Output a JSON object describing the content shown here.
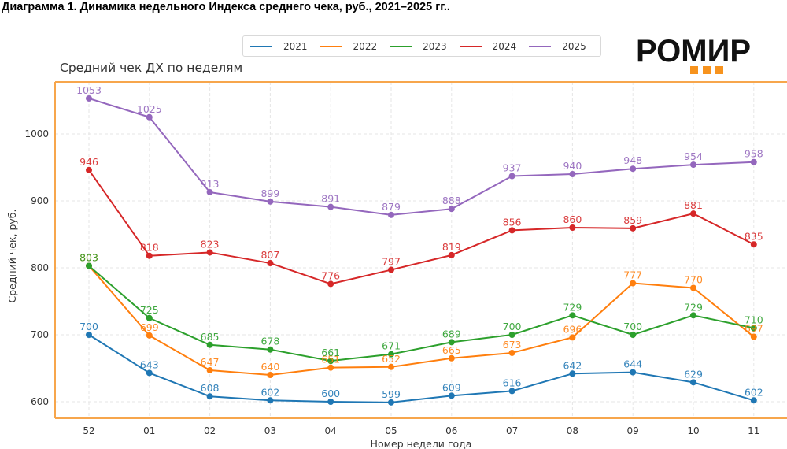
{
  "figure": {
    "title": "Диаграмма 1. Динамика недельного Индекса среднего чека, руб., 2021–2025 гг..",
    "logo": {
      "text": "РОМИР",
      "dot_color": "#f7931e"
    },
    "frame_color": "#f7a64c"
  },
  "chart_data": {
    "type": "line",
    "title": "Средний чек ДХ по неделям",
    "xlabel": "Номер недели года",
    "ylabel": "Средний чек, руб.",
    "categories": [
      "52",
      "01",
      "02",
      "03",
      "04",
      "05",
      "06",
      "07",
      "08",
      "09",
      "10",
      "11"
    ],
    "yticks": [
      600,
      700,
      800,
      900,
      1000
    ],
    "ylim": [
      575,
      1075
    ],
    "grid": true,
    "legend_position": "top-center",
    "series": [
      {
        "name": "2021",
        "color": "#1f77b4",
        "values": [
          700,
          643,
          608,
          602,
          600,
          599,
          609,
          616,
          642,
          644,
          629,
          602
        ]
      },
      {
        "name": "2022",
        "color": "#ff7f0e",
        "values": [
          803,
          699,
          647,
          640,
          651,
          652,
          665,
          673,
          696,
          777,
          770,
          697
        ]
      },
      {
        "name": "2023",
        "color": "#2ca02c",
        "values": [
          803,
          725,
          685,
          678,
          661,
          671,
          689,
          700,
          729,
          700,
          729,
          710
        ]
      },
      {
        "name": "2024",
        "color": "#d62728",
        "values": [
          946,
          818,
          823,
          807,
          776,
          797,
          819,
          856,
          860,
          859,
          881,
          835
        ]
      },
      {
        "name": "2025",
        "color": "#9467bd",
        "values": [
          1053,
          1025,
          913,
          899,
          891,
          879,
          888,
          937,
          940,
          948,
          954,
          958
        ]
      }
    ]
  }
}
